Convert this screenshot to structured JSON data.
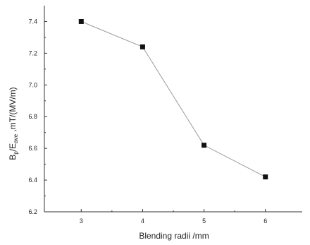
{
  "chart_data": {
    "type": "line",
    "xlabel": "Blending radii /mm",
    "ylabel_main": "B",
    "ylabel_sub1": "p",
    "ylabel_mid": "/E",
    "ylabel_sub2": "ave",
    "ylabel_tail": " ,mT/(MV/m)",
    "x": [
      3,
      4,
      5,
      6
    ],
    "xticks": [
      "3",
      "4",
      "5",
      "6"
    ],
    "xlim": [
      2.4,
      6.6
    ],
    "ylim": [
      6.2,
      7.5
    ],
    "yticks": [
      "6.2",
      "6.4",
      "6.6",
      "6.8",
      "7.0",
      "7.2",
      "7.4"
    ],
    "ytick_values": [
      6.2,
      6.4,
      6.6,
      6.8,
      7.0,
      7.2,
      7.4
    ],
    "series": [
      {
        "values": [
          7.4,
          7.24,
          6.62,
          6.42
        ],
        "color": "#111111",
        "line_color": "#9a9a9a",
        "marker": "square"
      }
    ],
    "grid": false
  }
}
